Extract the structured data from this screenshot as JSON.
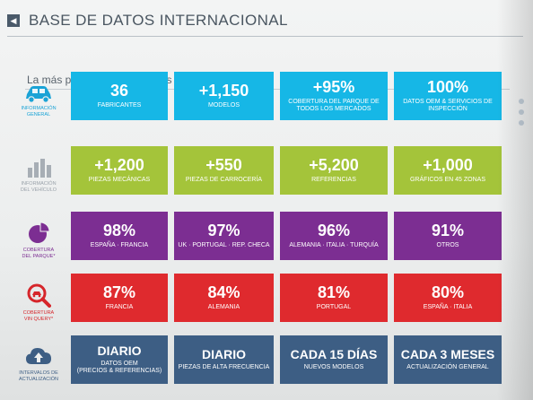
{
  "slide": {
    "title": "BASE DE DATOS INTERNACIONAL",
    "header_mark": "◀",
    "subtitle": "La más potente base de datos para el éxito"
  },
  "colors": {
    "cyan": "#16b7e6",
    "green": "#a4c43a",
    "purple": "#7c2e92",
    "red": "#df2a2e",
    "navy": "#3d5e84",
    "label_cyan": "#1aa3d6",
    "label_grey": "#9aa2aa",
    "label_purple": "#7c2e92",
    "label_red": "#d6262b",
    "label_navy": "#3d5e84"
  },
  "rows": [
    {
      "label": "INFORMACIÓN\nGENERAL",
      "icon": "car-icon",
      "tiles": [
        {
          "value": "36",
          "desc": "FABRICANTES"
        },
        {
          "value": "+1,150",
          "desc": "MODELOS"
        },
        {
          "value": "+95%",
          "desc": "COBERTURA DEL PARQUE DE\nTODOS LOS MERCADOS"
        },
        {
          "value": "100%",
          "desc": "DATOS OEM & SERVICIOS DE\nINSPECCIÓN"
        }
      ]
    },
    {
      "label": "INFORMACIÓN\nDEL VEHÍCULO",
      "icon": "bar-chart-icon",
      "tiles": [
        {
          "value": "+1,200",
          "desc": "PIEZAS MECÁNICAS"
        },
        {
          "value": "+550",
          "desc": "PIEZAS DE CARROCERÍA"
        },
        {
          "value": "+5,200",
          "desc": "REFERENCIAS"
        },
        {
          "value": "+1,000",
          "desc": "GRÁFICOS EN 45 ZONAS"
        }
      ]
    },
    {
      "label": "COBERTURA\nDEL PARQUE*",
      "icon": "pie-chart-icon",
      "tiles": [
        {
          "value": "98%",
          "desc": "ESPAÑA · FRANCIA"
        },
        {
          "value": "97%",
          "desc": "UK · PORTUGAL · REP. CHECA"
        },
        {
          "value": "96%",
          "desc": "ALEMANIA · ITALIA · TURQUÍA"
        },
        {
          "value": "91%",
          "desc": "OTROS"
        }
      ]
    },
    {
      "label": "COBERTURA\nVIN QUERY*",
      "icon": "search-car-icon",
      "tiles": [
        {
          "value": "87%",
          "desc": "FRANCIA"
        },
        {
          "value": "84%",
          "desc": "ALEMANIA"
        },
        {
          "value": "81%",
          "desc": "PORTUGAL"
        },
        {
          "value": "80%",
          "desc": "ESPAÑA · ITALIA"
        }
      ]
    },
    {
      "label": "INTERVALOS DE\nACTUALIZACIÓN",
      "icon": "cloud-upload-icon",
      "tiles": [
        {
          "value": "DIARIO",
          "desc": "DATOS OEM\n(PRECIOS & REFERENCIAS)"
        },
        {
          "value": "DIARIO",
          "desc": "PIEZAS DE ALTA FRECUENCIA"
        },
        {
          "value": "CADA 15 DÍAS",
          "desc": "NUEVOS MODELOS"
        },
        {
          "value": "CADA 3 MESES",
          "desc": "ACTUALIZACIÓN GENERAL"
        }
      ]
    }
  ]
}
